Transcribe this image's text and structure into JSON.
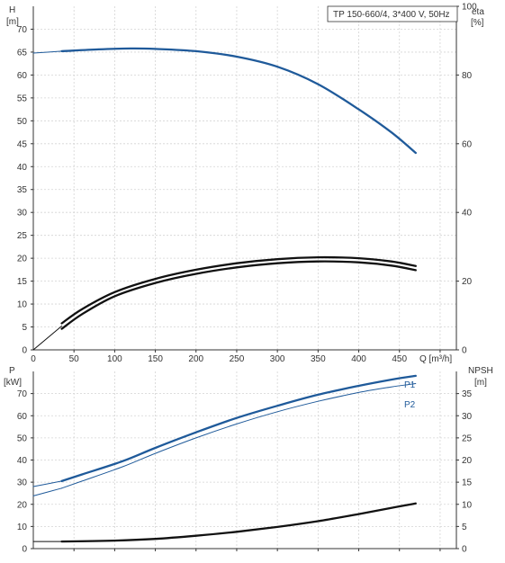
{
  "colors": {
    "blue": "#1f5a9a",
    "black": "#111111",
    "grid": "#d4d4d4",
    "axis": "#333333"
  },
  "chart_data": [
    {
      "type": "line",
      "title": "TP 150-660/4, 3*400 V, 50Hz",
      "xlabel": "Q [m³/h]",
      "xlim": [
        0,
        520
      ],
      "x_ticks": [
        0,
        50,
        100,
        150,
        200,
        250,
        300,
        350,
        400,
        450
      ],
      "left_axis": {
        "label_line1": "H",
        "label_line2": "[m]",
        "lim": [
          0,
          75
        ],
        "ticks": [
          0,
          5,
          10,
          15,
          20,
          25,
          30,
          35,
          40,
          45,
          50,
          55,
          60,
          65,
          70
        ]
      },
      "right_axis": {
        "label_line1": "eta",
        "label_line2": "[%]",
        "lim": [
          0,
          100
        ],
        "ticks": [
          0,
          20,
          40,
          60,
          80,
          100
        ]
      },
      "grid": true,
      "series": [
        {
          "axis": "left",
          "style": "thin-blue",
          "points": [
            [
              0,
              64.8
            ],
            [
              35,
              65.2
            ]
          ]
        },
        {
          "axis": "left",
          "style": "thick-blue",
          "points": [
            [
              35,
              65.2
            ],
            [
              80,
              65.6
            ],
            [
              120,
              65.8
            ],
            [
              150,
              65.7
            ],
            [
              200,
              65.2
            ],
            [
              250,
              64.0
            ],
            [
              300,
              61.8
            ],
            [
              350,
              58.0
            ],
            [
              400,
              52.5
            ],
            [
              440,
              47.5
            ],
            [
              470,
              43.0
            ]
          ]
        },
        {
          "axis": "left",
          "style": "thin-black",
          "points": [
            [
              0,
              0
            ],
            [
              35,
              5.2
            ]
          ]
        },
        {
          "axis": "left",
          "style": "thick-black",
          "points": [
            [
              35,
              5.8
            ],
            [
              60,
              8.9
            ],
            [
              100,
              12.6
            ],
            [
              150,
              15.5
            ],
            [
              200,
              17.5
            ],
            [
              250,
              18.9
            ],
            [
              300,
              19.8
            ],
            [
              350,
              20.2
            ],
            [
              400,
              20.0
            ],
            [
              440,
              19.3
            ],
            [
              470,
              18.3
            ]
          ]
        },
        {
          "axis": "left",
          "style": "thick-black",
          "points": [
            [
              35,
              4.6
            ],
            [
              60,
              7.8
            ],
            [
              100,
              11.7
            ],
            [
              150,
              14.6
            ],
            [
              200,
              16.6
            ],
            [
              250,
              18.0
            ],
            [
              300,
              18.9
            ],
            [
              350,
              19.3
            ],
            [
              400,
              19.1
            ],
            [
              440,
              18.4
            ],
            [
              470,
              17.4
            ]
          ]
        }
      ]
    },
    {
      "type": "line",
      "xlim": [
        0,
        520
      ],
      "left_axis": {
        "label_line1": "P",
        "label_line2": "[kW]",
        "lim": [
          0,
          80
        ],
        "ticks": [
          0,
          10,
          20,
          30,
          40,
          50,
          60,
          70
        ]
      },
      "right_axis": {
        "label_line1": "NPSH",
        "label_line2": "[m]",
        "lim": [
          0,
          40
        ],
        "ticks": [
          0,
          5,
          10,
          15,
          20,
          25,
          30,
          35
        ]
      },
      "grid": true,
      "series": [
        {
          "name": "P1",
          "axis": "left",
          "style": "thick-blue",
          "points": [
            [
              35,
              30.5
            ],
            [
              60,
              33.5
            ],
            [
              110,
              39.5
            ],
            [
              150,
              45.5
            ],
            [
              200,
              52.5
            ],
            [
              250,
              59.0
            ],
            [
              300,
              64.5
            ],
            [
              350,
              69.5
            ],
            [
              400,
              73.5
            ],
            [
              440,
              76.3
            ],
            [
              470,
              78.0
            ]
          ]
        },
        {
          "name": "P2",
          "axis": "left",
          "style": "thin-blue",
          "points": [
            [
              35,
              27.3
            ],
            [
              60,
              30.5
            ],
            [
              110,
              37.0
            ],
            [
              150,
              43.0
            ],
            [
              200,
              50.0
            ],
            [
              250,
              56.3
            ],
            [
              300,
              61.8
            ],
            [
              350,
              66.5
            ],
            [
              400,
              70.5
            ],
            [
              440,
              73.0
            ],
            [
              470,
              74.5
            ]
          ]
        },
        {
          "axis": "left",
          "style": "thin-blue",
          "points": [
            [
              0,
              28.0
            ],
            [
              35,
              30.5
            ]
          ]
        },
        {
          "axis": "left",
          "style": "thin-blue",
          "points": [
            [
              0,
              23.8
            ],
            [
              35,
              27.3
            ]
          ]
        },
        {
          "axis": "right",
          "style": "thin-black",
          "points": [
            [
              0,
              1.6
            ],
            [
              35,
              1.6
            ]
          ]
        },
        {
          "axis": "right",
          "style": "thick-black",
          "points": [
            [
              35,
              1.6
            ],
            [
              100,
              1.8
            ],
            [
              150,
              2.2
            ],
            [
              200,
              2.9
            ],
            [
              250,
              3.8
            ],
            [
              300,
              4.9
            ],
            [
              350,
              6.2
            ],
            [
              400,
              7.8
            ],
            [
              440,
              9.2
            ],
            [
              470,
              10.2
            ]
          ]
        }
      ]
    }
  ]
}
